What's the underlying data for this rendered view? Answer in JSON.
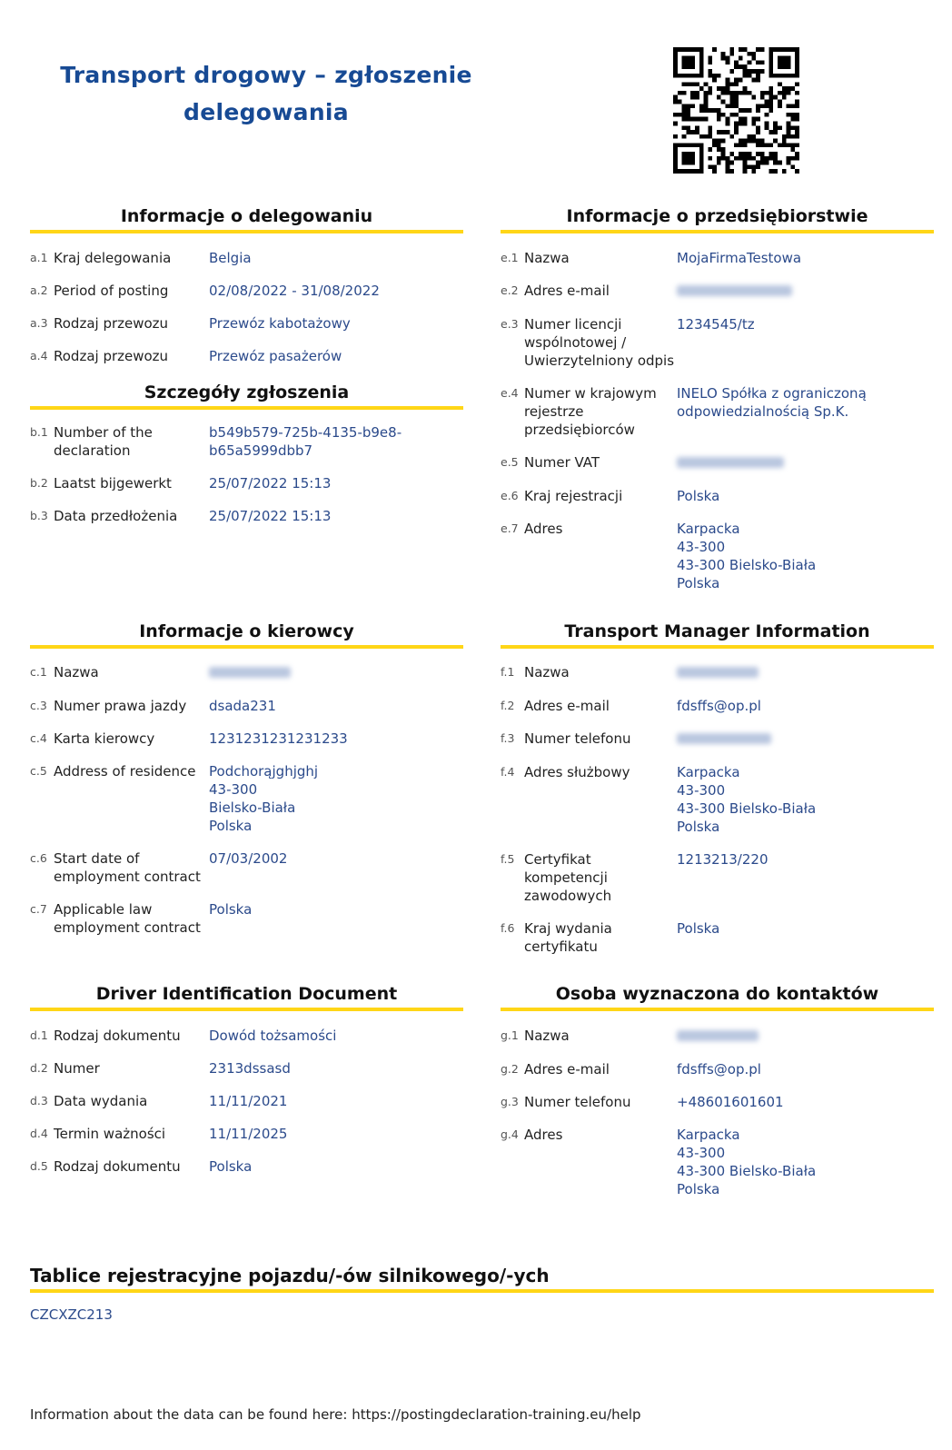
{
  "title": "Transport drogowy – zgłoszenie\ndelegowania",
  "colors": {
    "title": "#174a94",
    "value": "#2b4a8b",
    "underline": "#ffd617"
  },
  "sections": {
    "a": {
      "heading": "Informacje o delegowaniu",
      "rows": [
        {
          "code": "a.1",
          "label": "Kraj delegowania",
          "value": "Belgia"
        },
        {
          "code": "a.2",
          "label": "Period of posting",
          "value": "02/08/2022 - 31/08/2022"
        },
        {
          "code": "a.3",
          "label": "Rodzaj przewozu",
          "value": "Przewóz kabotażowy"
        },
        {
          "code": "a.4",
          "label": "Rodzaj przewozu",
          "value": "Przewóz pasażerów"
        }
      ]
    },
    "b": {
      "heading": "Szczegóły zgłoszenia",
      "rows": [
        {
          "code": "b.1",
          "label": "Number of the\ndeclaration",
          "value": "b549b579-725b-4135-b9e8-\nb65a5999dbb7"
        },
        {
          "code": "b.2",
          "label": "Laatst bijgewerkt",
          "value": "25/07/2022 15:13"
        },
        {
          "code": "b.3",
          "label": "Data przedłożenia",
          "value": "25/07/2022 15:13"
        }
      ]
    },
    "c": {
      "heading": "Informacje o kierowcy",
      "rows": [
        {
          "code": "c.1",
          "label": "Nazwa",
          "redacted": true
        },
        {
          "code": "c.3",
          "label": "Numer prawa jazdy",
          "value": "dsada231"
        },
        {
          "code": "c.4",
          "label": "Karta kierowcy",
          "value": "1231231231231233"
        },
        {
          "code": "c.5",
          "label": "Address of residence",
          "value": "Podchorąjghjghj\n43-300\nBielsko-Biała\nPolska"
        },
        {
          "code": "c.6",
          "label": "Start date of\nemployment contract",
          "value": "07/03/2002"
        },
        {
          "code": "c.7",
          "label": "Applicable law\nemployment contract",
          "value": "Polska"
        }
      ]
    },
    "d": {
      "heading": "Driver Identification Document",
      "rows": [
        {
          "code": "d.1",
          "label": "Rodzaj dokumentu",
          "value": "Dowód tożsamości"
        },
        {
          "code": "d.2",
          "label": "Numer",
          "value": "2313dssasd"
        },
        {
          "code": "d.3",
          "label": "Data wydania",
          "value": "11/11/2021"
        },
        {
          "code": "d.4",
          "label": "Termin ważności",
          "value": "11/11/2025"
        },
        {
          "code": "d.5",
          "label": "Rodzaj dokumentu",
          "value": "Polska"
        }
      ]
    },
    "e": {
      "heading": "Informacje o przedsiębiorstwie",
      "rows": [
        {
          "code": "e.1",
          "label": "Nazwa",
          "value": "MojaFirmaTestowa"
        },
        {
          "code": "e.2",
          "label": "Adres e-mail",
          "redacted": true
        },
        {
          "code": "e.3",
          "label": "Numer licencji\nwspólnotowej /\nUwierzytelniony odpis",
          "value": "1234545/tz"
        },
        {
          "code": "e.4",
          "label": "Numer w krajowym\nrejestrze\nprzedsiębiorców",
          "value": "INELO Spółka z ograniczoną\nodpowiedzialnością Sp.K."
        },
        {
          "code": "e.5",
          "label": "Numer VAT",
          "redacted": true
        },
        {
          "code": "e.6",
          "label": "Kraj rejestracji",
          "value": "Polska"
        },
        {
          "code": "e.7",
          "label": "Adres",
          "value": "Karpacka\n43-300\n43-300 Bielsko-Biała\nPolska"
        }
      ]
    },
    "f": {
      "heading": "Transport Manager Information",
      "rows": [
        {
          "code": "f.1",
          "label": "Nazwa",
          "redacted": true
        },
        {
          "code": "f.2",
          "label": "Adres e-mail",
          "value": "fdsffs@op.pl"
        },
        {
          "code": "f.3",
          "label": "Numer telefonu",
          "redacted": true
        },
        {
          "code": "f.4",
          "label": "Adres służbowy",
          "value": "Karpacka\n43-300\n43-300 Bielsko-Biała\nPolska"
        },
        {
          "code": "f.5",
          "label": "Certyfikat\nkompetencji\nzawodowych",
          "value": "1213213/220"
        },
        {
          "code": "f.6",
          "label": "Kraj wydania\ncertyfikatu",
          "value": "Polska"
        }
      ]
    },
    "g": {
      "heading": "Osoba wyznaczona do kontaktów",
      "rows": [
        {
          "code": "g.1",
          "label": "Nazwa",
          "redacted": true
        },
        {
          "code": "g.2",
          "label": "Adres e-mail",
          "value": "fdsffs@op.pl"
        },
        {
          "code": "g.3",
          "label": "Numer telefonu",
          "value": "+48601601601"
        },
        {
          "code": "g.4",
          "label": "Adres",
          "value": "Karpacka\n43-300\n43-300 Bielsko-Biała\nPolska"
        }
      ]
    }
  },
  "plates": {
    "heading": "Tablice rejestracyjne pojazdu/-ów silnikowego/-ych",
    "value": "CZCXZC213"
  },
  "footer": "Information about the data can be found here: https://postingdeclaration-training.eu/help"
}
